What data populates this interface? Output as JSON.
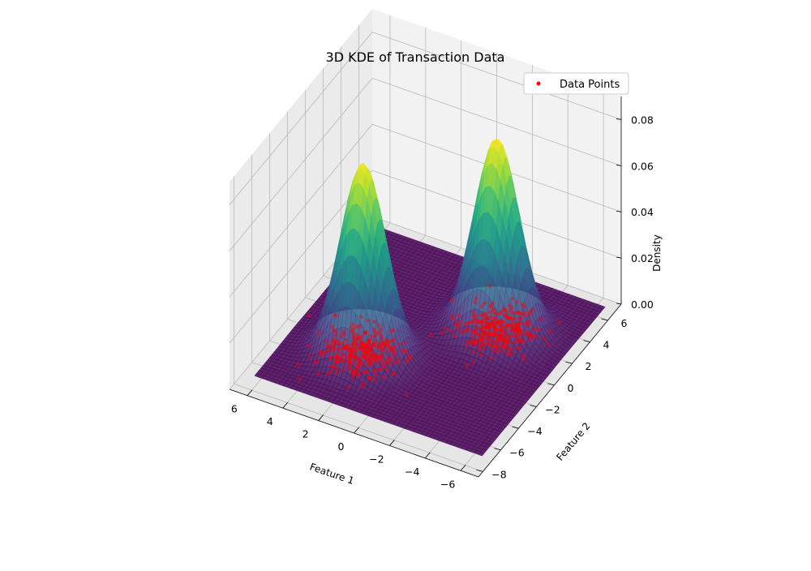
{
  "chart_data": {
    "type": "surface3d",
    "title": "3D KDE of Transaction Data",
    "xlabel": "Feature 1",
    "ylabel": "Feature 2",
    "zlabel": "Density",
    "xlim": [
      -7,
      7
    ],
    "ylim": [
      -8.5,
      7.5
    ],
    "zlim": [
      0,
      0.09
    ],
    "xticks": [
      -6,
      -4,
      -2,
      0,
      2,
      4,
      6
    ],
    "yticks": [
      -8,
      -6,
      -4,
      -2,
      0,
      2,
      4,
      6
    ],
    "zticks": [
      0.0,
      0.02,
      0.04,
      0.06,
      0.08
    ],
    "xtick_labels": [
      "−6",
      "−4",
      "−2",
      "0",
      "2",
      "4",
      "6"
    ],
    "ytick_labels": [
      "−8",
      "−6",
      "−4",
      "−2",
      "0",
      "2",
      "4",
      "6"
    ],
    "ztick_labels": [
      "0.00",
      "0.02",
      "0.04",
      "0.06",
      "0.08"
    ],
    "peaks": [
      {
        "x": -2.5,
        "y": 2.5,
        "density": 0.083
      },
      {
        "x": 2.5,
        "y": -2.5,
        "density": 0.082
      }
    ],
    "colormap": "viridis",
    "scatter_color": "#ff0000",
    "legend": {
      "entries": [
        "Data Points"
      ],
      "placement": "top-right"
    },
    "grid": true
  }
}
